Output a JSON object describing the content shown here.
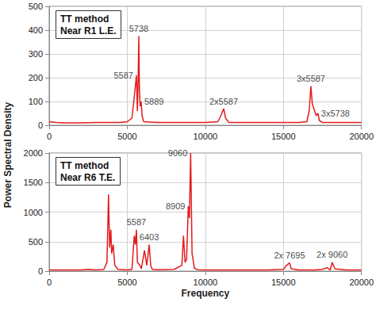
{
  "chart_data": [
    {
      "type": "line",
      "title": "TT method\nNear R1 L.E.",
      "color": "#e41a1c",
      "grid": true,
      "xlim": [
        0,
        20000
      ],
      "xticks": [
        0,
        5000,
        10000,
        15000,
        20000
      ],
      "ylim": [
        0,
        500
      ],
      "yticks": [
        0,
        100,
        200,
        300,
        400,
        500
      ],
      "ylabel": "Power Spectral Density",
      "x": [
        0,
        500,
        1000,
        2000,
        3000,
        4000,
        4500,
        5000,
        5300,
        5450,
        5587,
        5650,
        5700,
        5738,
        5780,
        5830,
        5889,
        5950,
        6050,
        7000,
        8000,
        9000,
        10000,
        10800,
        11000,
        11174,
        11300,
        11500,
        12000,
        13000,
        14000,
        15000,
        16000,
        16500,
        16650,
        16761,
        16850,
        17000,
        17100,
        17214,
        17300,
        17500,
        18000,
        19000,
        20000
      ],
      "values": [
        15,
        12,
        10,
        10,
        12,
        12,
        12,
        15,
        30,
        120,
        210,
        60,
        200,
        375,
        150,
        80,
        100,
        40,
        15,
        12,
        12,
        12,
        12,
        15,
        40,
        70,
        30,
        12,
        12,
        12,
        12,
        12,
        12,
        15,
        60,
        165,
        90,
        60,
        40,
        50,
        20,
        12,
        12,
        12,
        12
      ],
      "annotations": [
        {
          "text": "5587",
          "x": 5587,
          "y": 210
        },
        {
          "text": "5738",
          "x": 5738,
          "y": 375
        },
        {
          "text": "5889",
          "x": 5889,
          "y": 100
        },
        {
          "text": "2x5587",
          "x": 11174,
          "y": 70
        },
        {
          "text": "3x5587",
          "x": 16761,
          "y": 165
        },
        {
          "text": "3x5738",
          "x": 17214,
          "y": 50
        }
      ]
    },
    {
      "type": "line",
      "title": "TT method\nNear R6 T.E.",
      "color": "#e41a1c",
      "grid": true,
      "xlim": [
        0,
        20000
      ],
      "xticks": [
        0,
        5000,
        10000,
        15000,
        20000
      ],
      "ylim": [
        0,
        2000
      ],
      "yticks": [
        0,
        500,
        1000,
        1500,
        2000
      ],
      "xlabel": "Frequency",
      "x": [
        0,
        1000,
        2000,
        2500,
        3000,
        3500,
        3700,
        3800,
        3870,
        3950,
        4000,
        4100,
        4200,
        4400,
        5000,
        5300,
        5450,
        5520,
        5587,
        5650,
        5800,
        5900,
        6100,
        6250,
        6403,
        6500,
        6600,
        7000,
        8000,
        8500,
        8600,
        8700,
        8800,
        8909,
        8980,
        9060,
        9150,
        9300,
        9500,
        10000,
        11000,
        12000,
        13000,
        14000,
        15000,
        15200,
        15390,
        15500,
        16000,
        17000,
        17500,
        17800,
        18000,
        18120,
        18300,
        19000,
        20000
      ],
      "values": [
        20,
        20,
        20,
        30,
        20,
        30,
        150,
        1300,
        400,
        700,
        300,
        450,
        100,
        30,
        20,
        30,
        600,
        450,
        700,
        150,
        100,
        40,
        350,
        100,
        450,
        100,
        30,
        25,
        30,
        100,
        600,
        150,
        200,
        1100,
        900,
        2000,
        300,
        50,
        25,
        20,
        20,
        20,
        20,
        20,
        30,
        100,
        140,
        40,
        20,
        20,
        30,
        60,
        20,
        150,
        40,
        20,
        20
      ],
      "annotations": [
        {
          "text": "9060",
          "x": 9060,
          "y": 2000
        },
        {
          "text": "8909",
          "x": 8909,
          "y": 1100
        },
        {
          "text": "5587",
          "x": 5587,
          "y": 700
        },
        {
          "text": "6403",
          "x": 6403,
          "y": 450
        },
        {
          "text": "2x 7695",
          "x": 15390,
          "y": 140
        },
        {
          "text": "2x 9060",
          "x": 18120,
          "y": 150
        }
      ]
    }
  ]
}
